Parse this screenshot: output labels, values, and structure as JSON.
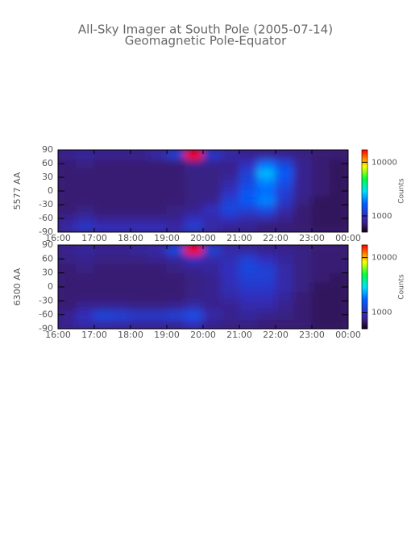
{
  "chart_data": [
    {
      "type": "heatmap",
      "title": "All-Sky Imager at South Pole (2005-07-14)",
      "subtitle": "Geomagnetic Pole-Equator",
      "ylabel": "5577 AA",
      "colorbar_label": "Counts",
      "zscale": "log",
      "x": [
        16.25,
        16.75,
        17.25,
        17.75,
        18.25,
        18.75,
        19.25,
        19.75,
        20.25,
        20.75,
        21.25,
        21.75,
        22.25,
        22.75,
        23.25,
        23.75
      ],
      "y": [
        -80,
        -60,
        -40,
        -20,
        0,
        20,
        40,
        60,
        80
      ],
      "z": [
        [
          900,
          1100,
          1000,
          1000,
          1000,
          1000,
          900,
          1200,
          900,
          800,
          800,
          700,
          700,
          700,
          650,
          650
        ],
        [
          800,
          900,
          800,
          800,
          800,
          800,
          800,
          1000,
          900,
          1000,
          900,
          900,
          800,
          700,
          650,
          650
        ],
        [
          700,
          750,
          700,
          700,
          700,
          700,
          750,
          800,
          1000,
          1300,
          1200,
          1400,
          900,
          700,
          650,
          650
        ],
        [
          700,
          700,
          700,
          700,
          700,
          700,
          700,
          750,
          800,
          1200,
          1600,
          2000,
          1100,
          750,
          650,
          650
        ],
        [
          700,
          700,
          700,
          700,
          700,
          700,
          700,
          750,
          750,
          1000,
          1500,
          1800,
          1200,
          800,
          700,
          650
        ],
        [
          700,
          700,
          700,
          700,
          700,
          700,
          700,
          750,
          750,
          900,
          1300,
          2000,
          1400,
          800,
          700,
          650
        ],
        [
          700,
          700,
          700,
          700,
          700,
          700,
          700,
          750,
          750,
          800,
          1200,
          2500,
          1600,
          800,
          700,
          650
        ],
        [
          700,
          750,
          700,
          700,
          700,
          700,
          700,
          800,
          800,
          800,
          1000,
          1800,
          1300,
          800,
          700,
          650
        ],
        [
          800,
          850,
          800,
          800,
          800,
          900,
          1200,
          17000,
          1100,
          900,
          800,
          800,
          800,
          750,
          700,
          700
        ]
      ],
      "xlim": [
        16,
        24
      ],
      "ylim": [
        -90,
        90
      ],
      "zlim": [
        500,
        17000
      ],
      "xticks": [
        {
          "value": 16,
          "label": "16:00"
        },
        {
          "value": 17,
          "label": "17:00"
        },
        {
          "value": 18,
          "label": "18:00"
        },
        {
          "value": 19,
          "label": "19:00"
        },
        {
          "value": 20,
          "label": "20:00"
        },
        {
          "value": 21,
          "label": "21:00"
        },
        {
          "value": 22,
          "label": "22:00"
        },
        {
          "value": 23,
          "label": "23:00"
        },
        {
          "value": 24,
          "label": "00:00"
        }
      ],
      "yticks": [
        90,
        60,
        30,
        0,
        -30,
        -60,
        -90
      ],
      "zticks": [
        1000,
        10000
      ]
    },
    {
      "type": "heatmap",
      "ylabel": "6300 AA",
      "colorbar_label": "Counts",
      "zscale": "log",
      "x": [
        16.25,
        16.75,
        17.25,
        17.75,
        18.25,
        18.75,
        19.25,
        19.75,
        20.25,
        20.75,
        21.25,
        21.75,
        22.25,
        22.75,
        23.25,
        23.75
      ],
      "y": [
        -80,
        -60,
        -40,
        -20,
        0,
        20,
        40,
        60,
        80
      ],
      "z": [
        [
          800,
          900,
          900,
          900,
          850,
          850,
          850,
          1000,
          800,
          750,
          750,
          700,
          700,
          700,
          650,
          650
        ],
        [
          800,
          1000,
          1300,
          1200,
          1100,
          1100,
          1200,
          1400,
          900,
          800,
          850,
          800,
          750,
          700,
          650,
          650
        ],
        [
          700,
          800,
          800,
          800,
          750,
          750,
          800,
          900,
          800,
          800,
          900,
          900,
          800,
          700,
          650,
          650
        ],
        [
          700,
          700,
          700,
          700,
          700,
          700,
          700,
          750,
          800,
          900,
          1000,
          1000,
          850,
          700,
          650,
          650
        ],
        [
          700,
          700,
          700,
          700,
          700,
          700,
          700,
          750,
          800,
          950,
          1100,
          1100,
          900,
          750,
          650,
          650
        ],
        [
          700,
          700,
          700,
          700,
          700,
          700,
          700,
          750,
          800,
          1000,
          1200,
          1200,
          900,
          750,
          700,
          650
        ],
        [
          700,
          750,
          700,
          700,
          700,
          700,
          750,
          800,
          850,
          1000,
          1300,
          1200,
          900,
          750,
          700,
          700
        ],
        [
          750,
          800,
          750,
          750,
          750,
          800,
          850,
          1000,
          900,
          950,
          1200,
          1000,
          850,
          750,
          700,
          700
        ],
        [
          800,
          850,
          800,
          800,
          850,
          900,
          1300,
          17000,
          1200,
          900,
          850,
          800,
          800,
          750,
          700,
          700
        ]
      ],
      "xlim": [
        16,
        24
      ],
      "ylim": [
        -90,
        90
      ],
      "zlim": [
        500,
        17000
      ],
      "xticks": [
        {
          "value": 16,
          "label": "16:00"
        },
        {
          "value": 17,
          "label": "17:00"
        },
        {
          "value": 18,
          "label": "18:00"
        },
        {
          "value": 19,
          "label": "19:00"
        },
        {
          "value": 20,
          "label": "20:00"
        },
        {
          "value": 21,
          "label": "21:00"
        },
        {
          "value": 22,
          "label": "22:00"
        },
        {
          "value": 23,
          "label": "23:00"
        },
        {
          "value": 24,
          "label": "00:00"
        }
      ],
      "yticks": [
        90,
        60,
        30,
        0,
        -30,
        -60,
        -90
      ],
      "zticks": [
        1000,
        10000
      ]
    }
  ]
}
